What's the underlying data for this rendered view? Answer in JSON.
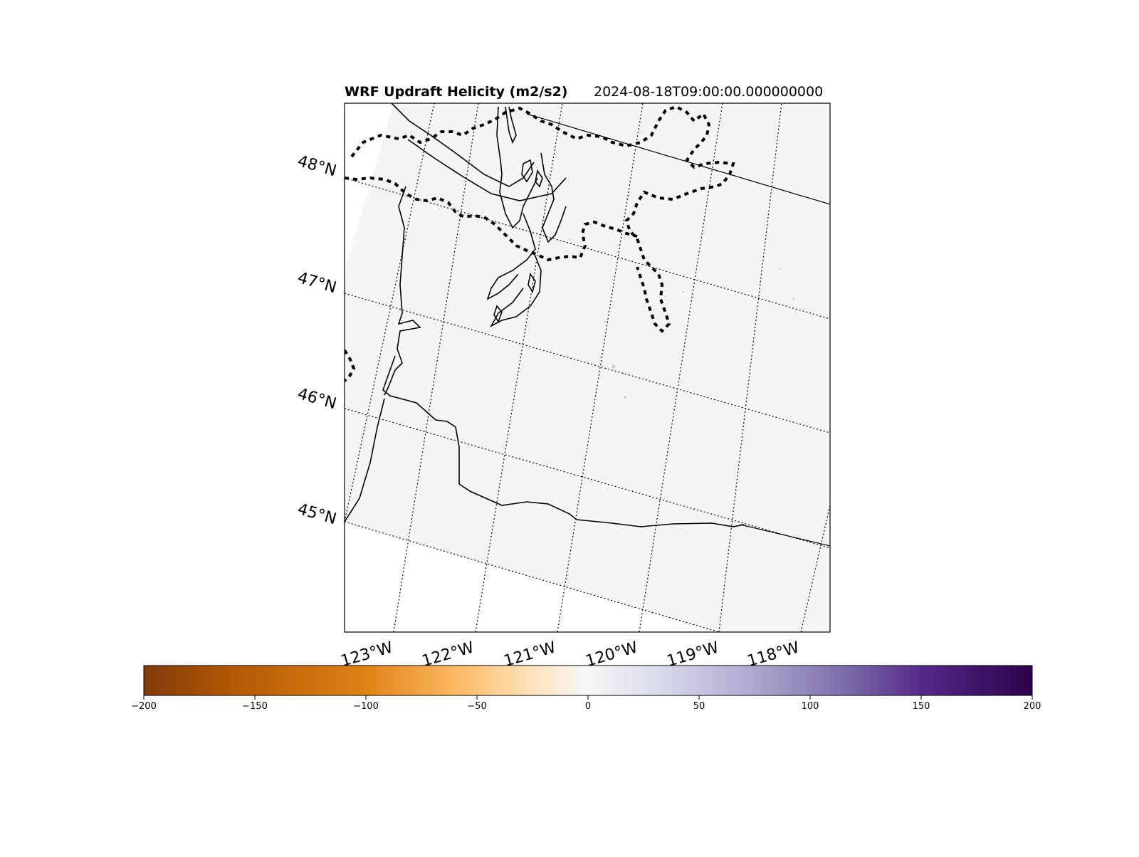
{
  "title": {
    "main": "WRF Updraft Helicity (m2/s2)",
    "time": "2024-08-18T09:00:00.000000000"
  },
  "map": {
    "lat_labels": [
      "48°N",
      "47°N",
      "46°N",
      "45°N"
    ],
    "lon_labels": [
      "123°W",
      "122°W",
      "121°W",
      "120°W",
      "119°W",
      "118°W"
    ],
    "field_fill_color": "#f5f5f5",
    "gridlines": "dotted"
  },
  "colorbar": {
    "colormap": "PuOr",
    "range": [
      -200,
      200
    ],
    "ticks": [
      "−200",
      "−150",
      "−100",
      "−50",
      "0",
      "50",
      "100",
      "150",
      "200"
    ],
    "colors": [
      "#7f3b08",
      "#b35806",
      "#e08214",
      "#fdb863",
      "#fee0b6",
      "#f7f7f7",
      "#d8daeb",
      "#b2abd2",
      "#8073ac",
      "#542788",
      "#2d004b"
    ]
  }
}
